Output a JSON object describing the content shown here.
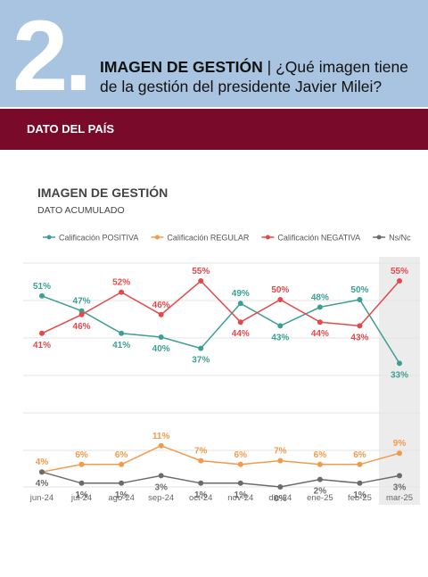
{
  "header": {
    "number": "2.",
    "title_bold": "IMAGEN DE GESTIÓN",
    "title_line1": "| ¿Qué imagen tiene",
    "title_line2": "de la gestión del presidente Javier Milei?",
    "band": "DATO DEL PAÍS"
  },
  "chart_data": {
    "type": "line",
    "title": "IMAGEN DE GESTIÓN",
    "subtitle": "DATO ACUMULADO",
    "categories": [
      "jun-24",
      "jul-24",
      "ago-24",
      "sep-24",
      "oct-24",
      "nov-24",
      "dic-24",
      "ene-25",
      "feb-25",
      "mar-25"
    ],
    "series": [
      {
        "name": "Calificación POSITIVA",
        "color": "#3d9f94",
        "values": [
          51,
          47,
          41,
          40,
          37,
          49,
          43,
          48,
          50,
          33
        ],
        "value_labels": [
          "51%",
          "47%",
          "41%",
          "40%",
          "37%",
          "49%",
          "43%",
          "48%",
          "50%",
          "33%"
        ]
      },
      {
        "name": "Calificación REGULAR",
        "color": "#f29a4a",
        "values": [
          4,
          6,
          6,
          11,
          7,
          6,
          7,
          6,
          6,
          9
        ],
        "value_labels": [
          "4%",
          "6%",
          "6%",
          "11%",
          "7%",
          "6%",
          "7%",
          "6%",
          "6%",
          "9%"
        ]
      },
      {
        "name": "Calificación NEGATIVA",
        "color": "#e5484b",
        "values": [
          41,
          46,
          52,
          46,
          55,
          44,
          50,
          44,
          43,
          55
        ],
        "value_labels": [
          "41%",
          "46%",
          "52%",
          "46%",
          "55%",
          "44%",
          "50%",
          "44%",
          "43%",
          "55%"
        ]
      },
      {
        "name": "Ns/Nc",
        "color": "#6b6b6b",
        "values": [
          4,
          1,
          1,
          3,
          1,
          1,
          0,
          2,
          1,
          3
        ],
        "value_labels": [
          "4%",
          "1%",
          "1%",
          "3%",
          "1%",
          "1%",
          "0%",
          "2%",
          "1%",
          "3%"
        ]
      }
    ]
  }
}
